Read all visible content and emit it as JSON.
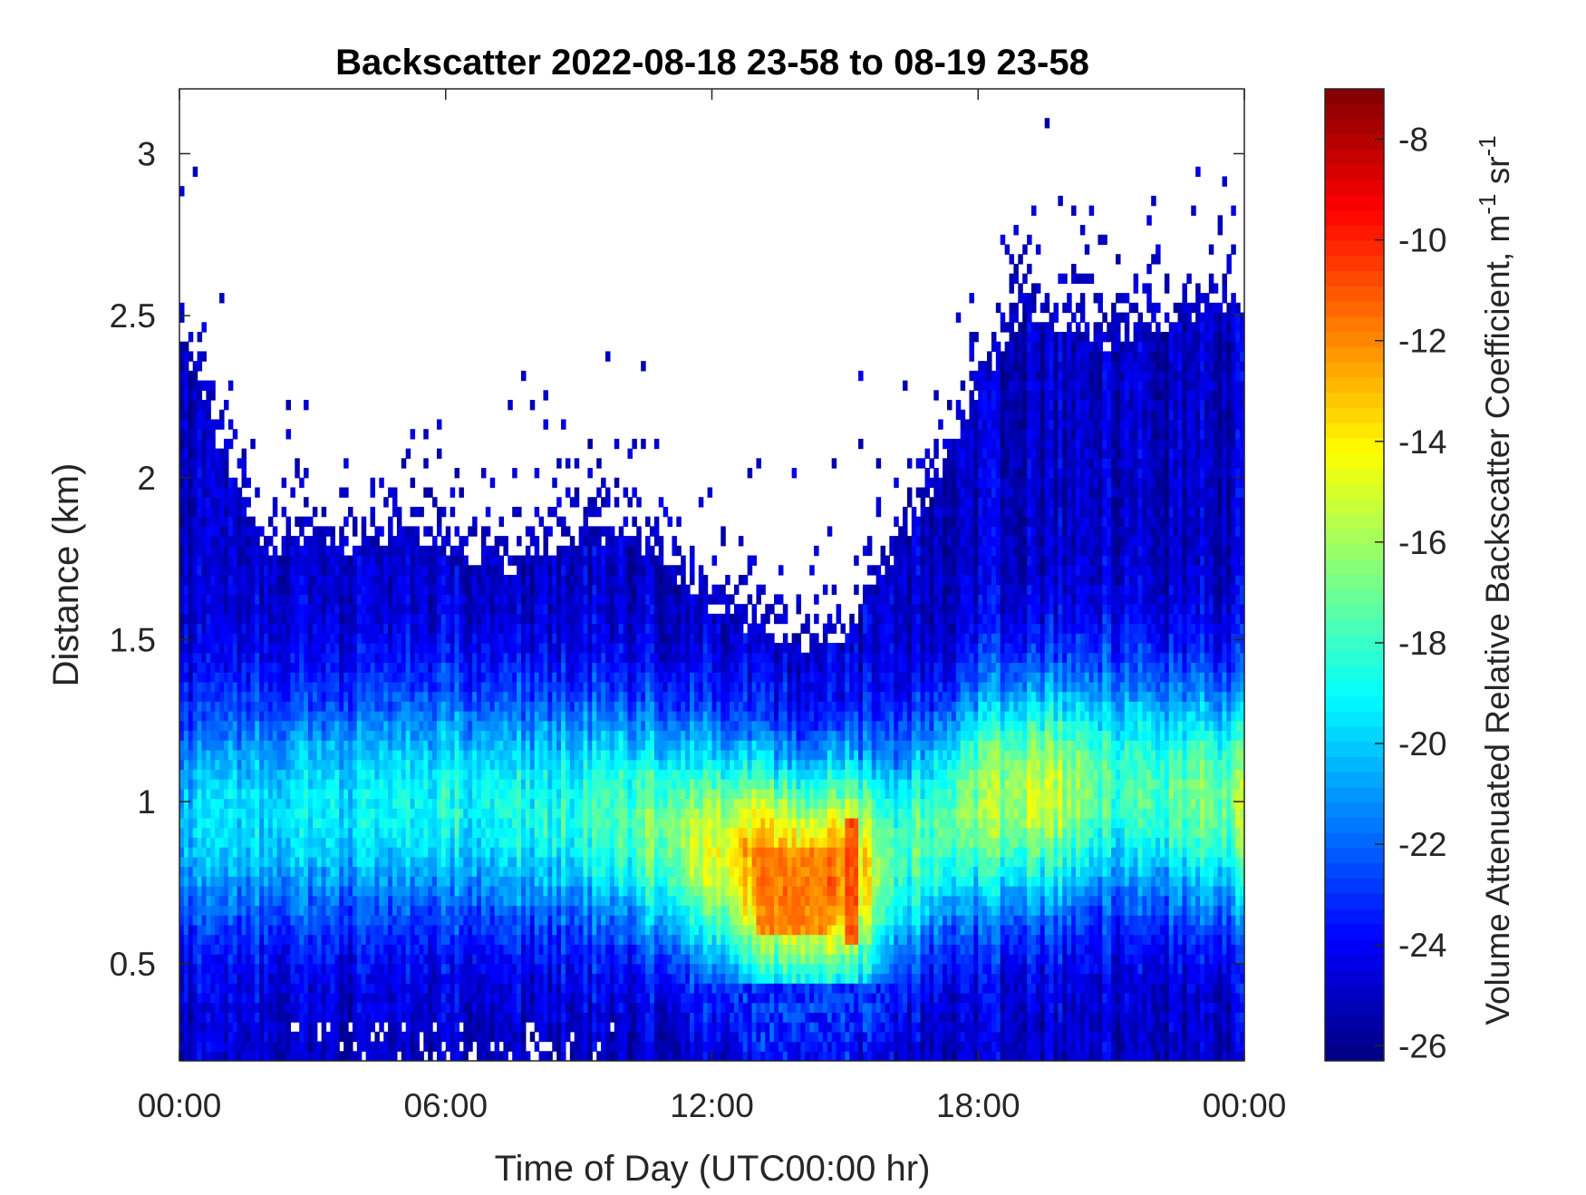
{
  "chart_data": {
    "type": "heatmap",
    "title": "Backscatter 2022-08-18 23-58 to 08-19 23-58",
    "xlabel": "Time of Day (UTC00:00 hr)",
    "ylabel": "Distance (km)",
    "xlim": [
      0,
      24
    ],
    "ylim": [
      0.2,
      3.2
    ],
    "x_ticks": [
      {
        "value": 0,
        "label": "00:00"
      },
      {
        "value": 6,
        "label": "06:00"
      },
      {
        "value": 12,
        "label": "12:00"
      },
      {
        "value": 18,
        "label": "18:00"
      },
      {
        "value": 24,
        "label": "00:00"
      }
    ],
    "y_ticks": [
      {
        "value": 0.5,
        "label": "0.5"
      },
      {
        "value": 1,
        "label": "1"
      },
      {
        "value": 1.5,
        "label": "1.5"
      },
      {
        "value": 2,
        "label": "2"
      },
      {
        "value": 2.5,
        "label": "2.5"
      },
      {
        "value": 3,
        "label": "3"
      }
    ],
    "colorbar": {
      "label_main": "Volume Attenuated Relative Backscatter Coefficient, m",
      "label_sup1": "-1",
      "label_mid": " sr",
      "label_sup2": "-1",
      "colormap": "jet",
      "clim": [
        -26.3,
        -7
      ],
      "ticks": [
        {
          "value": -8,
          "label": "-8"
        },
        {
          "value": -10,
          "label": "-10"
        },
        {
          "value": -12,
          "label": "-12"
        },
        {
          "value": -14,
          "label": "-14"
        },
        {
          "value": -16,
          "label": "-16"
        },
        {
          "value": -18,
          "label": "-18"
        },
        {
          "value": -20,
          "label": "-20"
        },
        {
          "value": -22,
          "label": "-22"
        },
        {
          "value": -24,
          "label": "-24"
        },
        {
          "value": -26,
          "label": "-26"
        }
      ]
    },
    "boundary_layer_top_km": [
      {
        "t": 0,
        "top": 2.45
      },
      {
        "t": 0.5,
        "top": 2.2
      },
      {
        "t": 1,
        "top": 2.05
      },
      {
        "t": 1.5,
        "top": 1.85
      },
      {
        "t": 2,
        "top": 1.75
      },
      {
        "t": 3,
        "top": 1.8
      },
      {
        "t": 4,
        "top": 1.75
      },
      {
        "t": 5,
        "top": 1.8
      },
      {
        "t": 6,
        "top": 1.75
      },
      {
        "t": 7,
        "top": 1.7
      },
      {
        "t": 8,
        "top": 1.72
      },
      {
        "t": 9,
        "top": 1.78
      },
      {
        "t": 10,
        "top": 1.82
      },
      {
        "t": 11,
        "top": 1.7
      },
      {
        "t": 12,
        "top": 1.58
      },
      {
        "t": 13,
        "top": 1.5
      },
      {
        "t": 14,
        "top": 1.45
      },
      {
        "t": 15,
        "top": 1.5
      },
      {
        "t": 16,
        "top": 1.72
      },
      {
        "t": 17,
        "top": 1.95
      },
      {
        "t": 18,
        "top": 2.25
      },
      {
        "t": 19,
        "top": 2.5
      },
      {
        "t": 20,
        "top": 2.45
      },
      {
        "t": 21,
        "top": 2.38
      },
      {
        "t": 22,
        "top": 2.45
      },
      {
        "t": 23,
        "top": 2.5
      },
      {
        "t": 24,
        "top": 2.5
      }
    ],
    "aerosol_layer_center_km": [
      {
        "t": 0,
        "center": 0.95
      },
      {
        "t": 6,
        "center": 1.0
      },
      {
        "t": 10,
        "center": 0.95
      },
      {
        "t": 12,
        "center": 0.85
      },
      {
        "t": 14,
        "center": 0.75
      },
      {
        "t": 15.5,
        "center": 0.78
      },
      {
        "t": 18,
        "center": 1.0
      },
      {
        "t": 21,
        "center": 1.05
      },
      {
        "t": 24,
        "center": 1.0
      }
    ],
    "peak_intensity_by_hour": [
      {
        "t": 0,
        "peak": -20
      },
      {
        "t": 3,
        "peak": -19.5
      },
      {
        "t": 6,
        "peak": -19
      },
      {
        "t": 9,
        "peak": -18.5
      },
      {
        "t": 11,
        "peak": -16.5
      },
      {
        "t": 12,
        "peak": -15
      },
      {
        "t": 13.3,
        "peak": -12
      },
      {
        "t": 14,
        "peak": -12.8
      },
      {
        "t": 15.1,
        "peak": -11.5
      },
      {
        "t": 16,
        "peak": -18
      },
      {
        "t": 18,
        "peak": -16.5
      },
      {
        "t": 19.5,
        "peak": -15
      },
      {
        "t": 21,
        "peak": -18
      },
      {
        "t": 24,
        "peak": -16.5
      }
    ],
    "notable_features": [
      {
        "t_start": 13.0,
        "t_end": 14.6,
        "z_min": 0.6,
        "z_max": 0.85,
        "value": -12
      },
      {
        "t_start": 15.05,
        "t_end": 15.25,
        "z_min": 0.55,
        "z_max": 0.95,
        "value": -11
      }
    ],
    "grid": false
  }
}
